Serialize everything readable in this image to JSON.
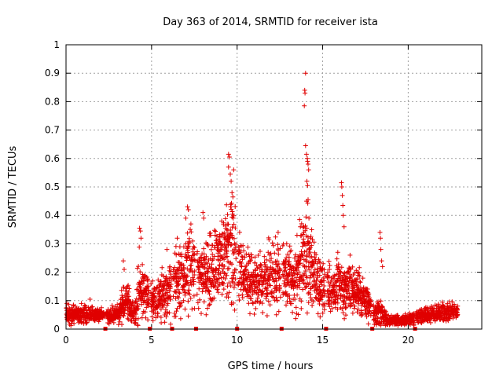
{
  "chart_data": {
    "type": "scatter",
    "title": "Day 363 of 2014, SRMTID for receiver ista",
    "xlabel": "GPS time / hours",
    "ylabel": "SRMTID / TECUs",
    "xlim": [
      0,
      24.3
    ],
    "ylim": [
      0,
      1
    ],
    "x_ticks": [
      0,
      5,
      10,
      15,
      20
    ],
    "y_ticks": [
      0,
      0.1,
      0.2,
      0.3,
      0.4,
      0.5,
      0.6,
      0.7,
      0.8,
      0.9,
      1
    ],
    "x_tick_labels": [
      "0",
      "5",
      "10",
      "15",
      "20"
    ],
    "y_tick_labels": [
      "0",
      "0.1",
      "0.2",
      "0.3",
      "0.4",
      "0.5",
      "0.6",
      "0.7",
      "0.8",
      "0.9",
      "1"
    ],
    "grid": true,
    "marker": "+",
    "color": "#e00000",
    "data_gap_markers_x": [
      2.3,
      4.9,
      6.2,
      7.6,
      10.0,
      12.6,
      15.2,
      17.9,
      20.4
    ],
    "envelope": {
      "x": [
        0,
        0.5,
        1.0,
        1.5,
        2.0,
        2.5,
        3.0,
        3.2,
        3.5,
        3.8,
        4.0,
        4.3,
        4.6,
        5.0,
        5.5,
        6.0,
        6.5,
        7.0,
        7.3,
        7.6,
        8.0,
        8.5,
        9.0,
        9.5,
        9.8,
        10.0,
        10.5,
        11.0,
        11.5,
        12.0,
        12.5,
        13.0,
        13.5,
        13.8,
        14.0,
        14.3,
        14.6,
        15.0,
        15.5,
        16.0,
        16.4,
        16.8,
        17.2,
        17.6,
        18.0,
        18.4,
        18.8,
        19.2,
        19.6,
        20.0,
        20.5,
        21.0,
        21.5,
        22.0,
        22.5,
        22.9
      ],
      "base": [
        0.05,
        0.05,
        0.05,
        0.055,
        0.05,
        0.05,
        0.055,
        0.07,
        0.12,
        0.06,
        0.06,
        0.14,
        0.13,
        0.1,
        0.11,
        0.14,
        0.16,
        0.2,
        0.25,
        0.2,
        0.18,
        0.2,
        0.25,
        0.27,
        0.27,
        0.22,
        0.18,
        0.16,
        0.17,
        0.19,
        0.2,
        0.18,
        0.17,
        0.22,
        0.25,
        0.2,
        0.17,
        0.15,
        0.14,
        0.16,
        0.14,
        0.14,
        0.12,
        0.1,
        0.05,
        0.06,
        0.03,
        0.03,
        0.03,
        0.035,
        0.04,
        0.05,
        0.055,
        0.06,
        0.065,
        0.07
      ],
      "spread": [
        0.03,
        0.025,
        0.03,
        0.03,
        0.02,
        0.025,
        0.03,
        0.05,
        0.08,
        0.03,
        0.04,
        0.12,
        0.09,
        0.06,
        0.08,
        0.1,
        0.1,
        0.14,
        0.15,
        0.12,
        0.1,
        0.12,
        0.14,
        0.17,
        0.2,
        0.14,
        0.1,
        0.09,
        0.1,
        0.12,
        0.12,
        0.11,
        0.1,
        0.14,
        0.2,
        0.15,
        0.1,
        0.09,
        0.08,
        0.1,
        0.09,
        0.08,
        0.07,
        0.06,
        0.03,
        0.05,
        0.02,
        0.02,
        0.02,
        0.02,
        0.025,
        0.03,
        0.03,
        0.035,
        0.035,
        0.02
      ]
    },
    "peaks": [
      {
        "x": 0.05,
        "y": 0.09
      },
      {
        "x": 0.9,
        "y": 0.09
      },
      {
        "x": 1.4,
        "y": 0.105
      },
      {
        "x": 3.35,
        "y": 0.24
      },
      {
        "x": 3.4,
        "y": 0.21
      },
      {
        "x": 4.3,
        "y": 0.355
      },
      {
        "x": 4.35,
        "y": 0.345
      },
      {
        "x": 4.38,
        "y": 0.32
      },
      {
        "x": 5.9,
        "y": 0.28
      },
      {
        "x": 6.5,
        "y": 0.32
      },
      {
        "x": 7.0,
        "y": 0.39
      },
      {
        "x": 7.1,
        "y": 0.43
      },
      {
        "x": 7.15,
        "y": 0.42
      },
      {
        "x": 7.3,
        "y": 0.37
      },
      {
        "x": 8.0,
        "y": 0.41
      },
      {
        "x": 8.05,
        "y": 0.39
      },
      {
        "x": 8.4,
        "y": 0.33
      },
      {
        "x": 9.1,
        "y": 0.38
      },
      {
        "x": 9.5,
        "y": 0.615
      },
      {
        "x": 9.55,
        "y": 0.605
      },
      {
        "x": 9.6,
        "y": 0.545
      },
      {
        "x": 9.65,
        "y": 0.52
      },
      {
        "x": 9.7,
        "y": 0.48
      },
      {
        "x": 9.75,
        "y": 0.465
      },
      {
        "x": 9.8,
        "y": 0.56
      },
      {
        "x": 9.5,
        "y": 0.57
      },
      {
        "x": 9.62,
        "y": 0.43
      },
      {
        "x": 12.4,
        "y": 0.34
      },
      {
        "x": 12.9,
        "y": 0.3
      },
      {
        "x": 13.5,
        "y": 0.33
      },
      {
        "x": 13.65,
        "y": 0.385
      },
      {
        "x": 13.7,
        "y": 0.36
      },
      {
        "x": 13.9,
        "y": 0.34
      },
      {
        "x": 14.0,
        "y": 0.9
      },
      {
        "x": 13.95,
        "y": 0.84
      },
      {
        "x": 13.97,
        "y": 0.83
      },
      {
        "x": 13.93,
        "y": 0.785
      },
      {
        "x": 14.0,
        "y": 0.645
      },
      {
        "x": 14.05,
        "y": 0.615
      },
      {
        "x": 14.1,
        "y": 0.6
      },
      {
        "x": 14.12,
        "y": 0.59
      },
      {
        "x": 14.15,
        "y": 0.58
      },
      {
        "x": 14.18,
        "y": 0.56
      },
      {
        "x": 14.08,
        "y": 0.52
      },
      {
        "x": 14.12,
        "y": 0.505
      },
      {
        "x": 14.06,
        "y": 0.45
      },
      {
        "x": 14.15,
        "y": 0.455
      },
      {
        "x": 14.2,
        "y": 0.39
      },
      {
        "x": 14.3,
        "y": 0.32
      },
      {
        "x": 14.4,
        "y": 0.315
      },
      {
        "x": 16.1,
        "y": 0.515
      },
      {
        "x": 16.12,
        "y": 0.5
      },
      {
        "x": 16.15,
        "y": 0.47
      },
      {
        "x": 16.18,
        "y": 0.435
      },
      {
        "x": 16.2,
        "y": 0.4
      },
      {
        "x": 16.25,
        "y": 0.36
      },
      {
        "x": 16.6,
        "y": 0.26
      },
      {
        "x": 18.35,
        "y": 0.34
      },
      {
        "x": 18.38,
        "y": 0.32
      },
      {
        "x": 18.4,
        "y": 0.28
      },
      {
        "x": 18.45,
        "y": 0.24
      },
      {
        "x": 18.5,
        "y": 0.22
      },
      {
        "x": 7.9,
        "y": 0.055
      },
      {
        "x": 3.8,
        "y": 0.03
      },
      {
        "x": 22.0,
        "y": 0.095
      }
    ]
  }
}
